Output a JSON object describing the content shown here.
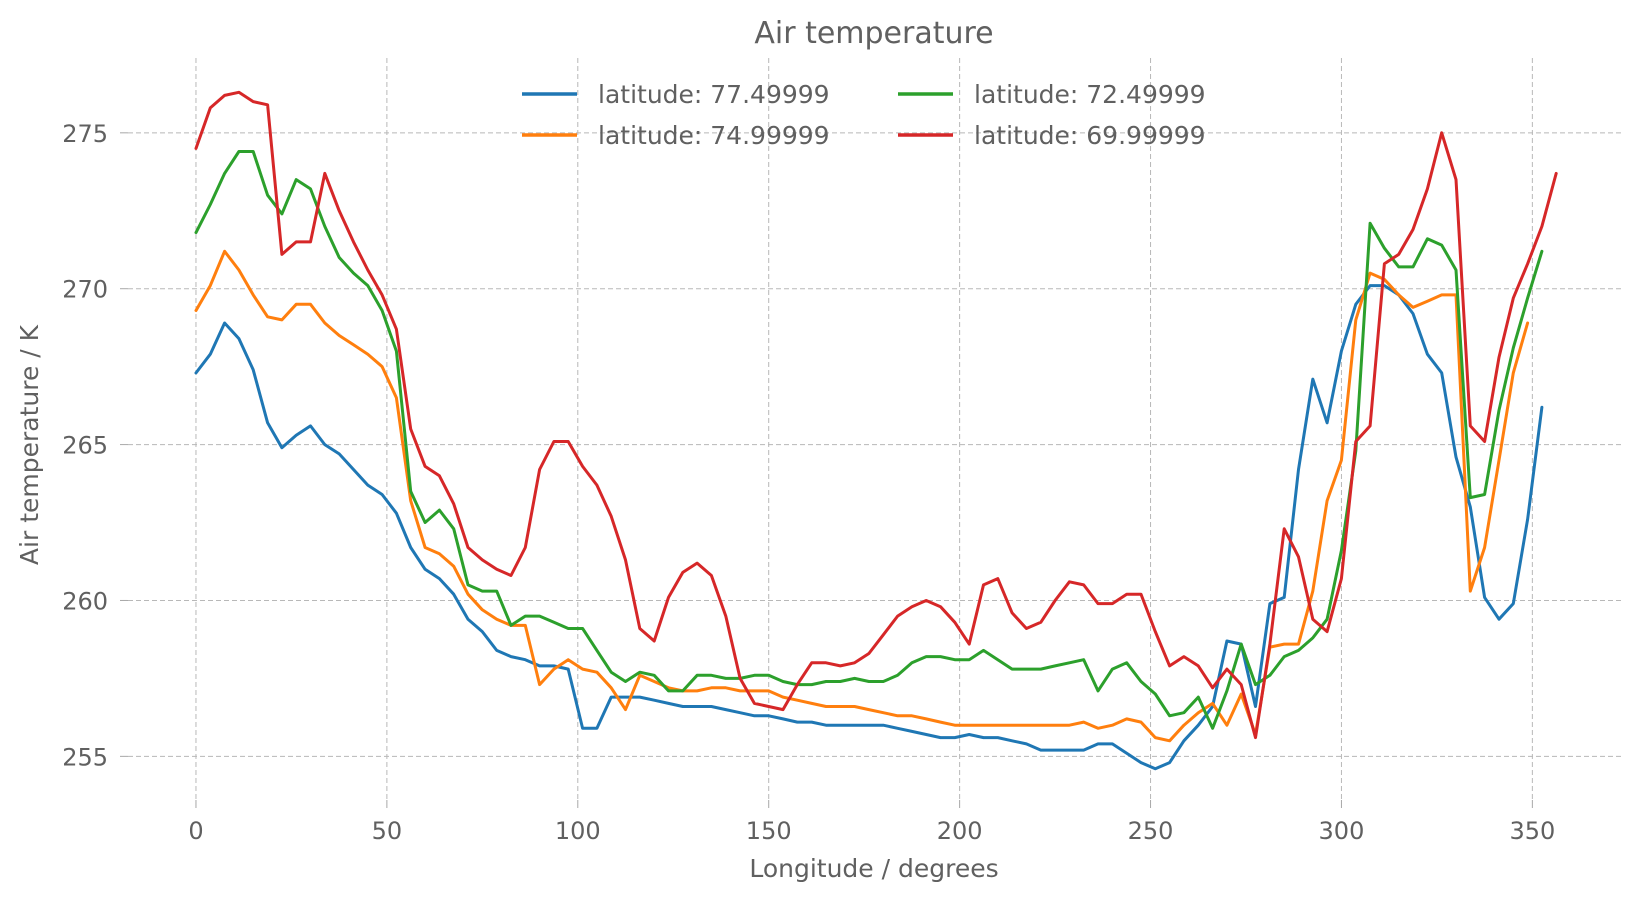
{
  "chart_data": {
    "type": "line",
    "title": "Air temperature",
    "xlabel": "Longitude / degrees",
    "ylabel": "Air temperature / K",
    "xlim": [
      -17.8,
      374
    ],
    "ylim": [
      253.6,
      277.4
    ],
    "xticks": [
      0,
      50,
      100,
      150,
      200,
      250,
      300,
      350
    ],
    "yticks": [
      255,
      260,
      265,
      270,
      275
    ],
    "grid": true,
    "legend_position": "top-center",
    "x_step": 3.75,
    "series": [
      {
        "name": "latitude: 77.49999",
        "color": "#1f77b4",
        "values": [
          267.3,
          267.9,
          268.9,
          268.4,
          267.4,
          265.7,
          264.9,
          265.3,
          265.6,
          265.0,
          264.7,
          264.2,
          263.7,
          263.4,
          262.8,
          261.7,
          261.0,
          260.7,
          260.2,
          259.4,
          259.0,
          258.4,
          258.2,
          258.1,
          257.9,
          257.9,
          257.8,
          255.9,
          255.9,
          256.9,
          256.9,
          256.9,
          256.8,
          256.7,
          256.6,
          256.6,
          256.6,
          256.5,
          256.4,
          256.3,
          256.3,
          256.2,
          256.1,
          256.1,
          256.0,
          256.0,
          256.0,
          256.0,
          256.0,
          255.9,
          255.8,
          255.7,
          255.6,
          255.6,
          255.7,
          255.6,
          255.6,
          255.5,
          255.4,
          255.2,
          255.2,
          255.2,
          255.2,
          255.4,
          255.4,
          255.1,
          254.8,
          254.6,
          254.8,
          255.5,
          256.0,
          256.6,
          258.7,
          258.6,
          256.6,
          259.9,
          260.1,
          264.2,
          267.1,
          265.7,
          268.0,
          269.5,
          270.1,
          270.1,
          269.8,
          269.2,
          267.9,
          267.3,
          264.6,
          263.0,
          260.1,
          259.4,
          259.9,
          262.6,
          266.2
        ]
      },
      {
        "name": "latitude: 74.99999",
        "color": "#ff7f0e",
        "values": [
          269.3,
          270.1,
          271.2,
          270.6,
          269.8,
          269.1,
          269.0,
          269.5,
          269.5,
          268.9,
          268.5,
          268.2,
          267.9,
          267.5,
          266.5,
          263.2,
          261.7,
          261.5,
          261.1,
          260.2,
          259.7,
          259.4,
          259.2,
          259.2,
          257.3,
          257.8,
          258.1,
          257.8,
          257.7,
          257.2,
          256.5,
          257.6,
          257.4,
          257.2,
          257.1,
          257.1,
          257.2,
          257.2,
          257.1,
          257.1,
          257.1,
          256.9,
          256.8,
          256.7,
          256.6,
          256.6,
          256.6,
          256.5,
          256.4,
          256.3,
          256.3,
          256.2,
          256.1,
          256.0,
          256.0,
          256.0,
          256.0,
          256.0,
          256.0,
          256.0,
          256.0,
          256.0,
          256.1,
          255.9,
          256.0,
          256.2,
          256.1,
          255.6,
          255.5,
          256.0,
          256.4,
          256.7,
          256.0,
          257.0,
          255.7,
          258.5,
          258.6,
          258.6,
          260.3,
          263.2,
          264.5,
          269.0,
          270.5,
          270.3,
          269.8,
          269.4,
          269.6,
          269.8,
          269.8,
          260.3,
          261.7,
          264.5,
          267.3,
          268.9
        ]
      },
      {
        "name": "latitude: 72.49999",
        "color": "#2ca02c",
        "values": [
          271.8,
          272.7,
          273.7,
          274.4,
          274.4,
          273.0,
          272.4,
          273.5,
          273.2,
          272.0,
          271.0,
          270.5,
          270.1,
          269.3,
          268.0,
          263.5,
          262.5,
          262.9,
          262.3,
          260.5,
          260.3,
          260.3,
          259.2,
          259.5,
          259.5,
          259.3,
          259.1,
          259.1,
          258.4,
          257.7,
          257.4,
          257.7,
          257.6,
          257.1,
          257.1,
          257.6,
          257.6,
          257.5,
          257.5,
          257.6,
          257.6,
          257.4,
          257.3,
          257.3,
          257.4,
          257.4,
          257.5,
          257.4,
          257.4,
          257.6,
          258.0,
          258.2,
          258.2,
          258.1,
          258.1,
          258.4,
          258.1,
          257.8,
          257.8,
          257.8,
          257.9,
          258.0,
          258.1,
          257.1,
          257.8,
          258.0,
          257.4,
          257.0,
          256.3,
          256.4,
          256.9,
          255.9,
          257.1,
          258.6,
          257.3,
          257.6,
          258.2,
          258.4,
          258.8,
          259.4,
          261.6,
          264.8,
          272.1,
          271.3,
          270.7,
          270.7,
          271.6,
          271.4,
          270.6,
          263.3,
          263.4,
          266.1,
          268.1,
          269.7,
          271.2
        ]
      },
      {
        "name": "latitude: 69.99999",
        "color": "#d62728",
        "values": [
          274.5,
          275.8,
          276.2,
          276.3,
          276.0,
          275.9,
          271.1,
          271.5,
          271.5,
          273.7,
          272.5,
          271.5,
          270.6,
          269.8,
          268.7,
          265.5,
          264.3,
          264.0,
          263.1,
          261.7,
          261.3,
          261.0,
          260.8,
          261.7,
          264.2,
          265.1,
          265.1,
          264.3,
          263.7,
          262.7,
          261.3,
          259.1,
          258.7,
          260.1,
          260.9,
          261.2,
          260.8,
          259.5,
          257.5,
          256.7,
          256.6,
          256.5,
          257.3,
          258.0,
          258.0,
          257.9,
          258.0,
          258.3,
          258.9,
          259.5,
          259.8,
          260.0,
          259.8,
          259.3,
          258.6,
          260.5,
          260.7,
          259.6,
          259.1,
          259.3,
          260.0,
          260.6,
          260.5,
          259.9,
          259.9,
          260.2,
          260.2,
          259.0,
          257.9,
          258.2,
          257.9,
          257.2,
          257.8,
          257.3,
          255.6,
          258.6,
          262.3,
          261.4,
          259.4,
          259.0,
          260.7,
          265.1,
          265.6,
          270.8,
          271.1,
          271.9,
          273.2,
          275.0,
          273.5,
          265.6,
          265.1,
          267.8,
          269.7,
          270.8,
          272.0,
          273.7
        ]
      }
    ]
  }
}
